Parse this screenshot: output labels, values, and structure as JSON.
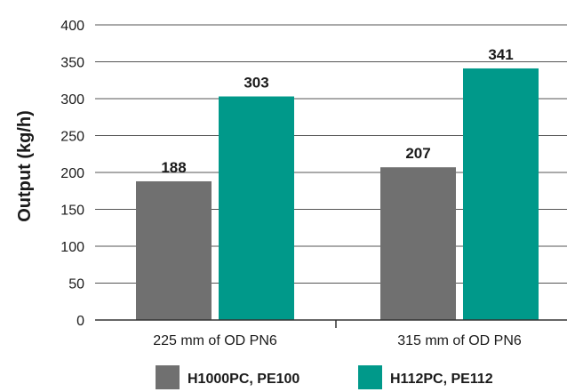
{
  "chart_data": {
    "type": "bar",
    "categories": [
      "225 mm of OD PN6",
      "315 mm of OD PN6"
    ],
    "series": [
      {
        "name": "H1000PC, PE100",
        "values": [
          188,
          207
        ],
        "color": "#707070"
      },
      {
        "name": "H112PC, PE112",
        "values": [
          303,
          341
        ],
        "color": "#00998a"
      }
    ],
    "ylabel": "Output (kg/h)",
    "xlabel": "",
    "ylim": [
      0,
      400
    ],
    "yticks": [
      0,
      50,
      100,
      150,
      200,
      250,
      300,
      350,
      400
    ],
    "grid": true,
    "legend_position": "bottom"
  }
}
